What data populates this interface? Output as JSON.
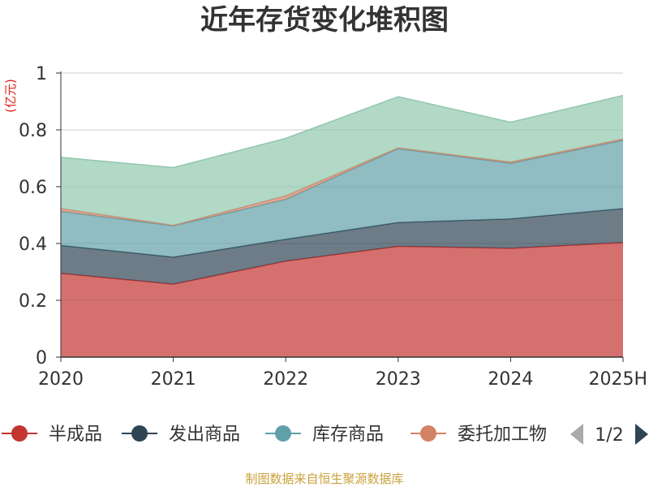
{
  "chart_data": {
    "type": "area",
    "stacked": true,
    "title": "近年存货变化堆积图",
    "unit": "(亿元)",
    "categories": [
      "2020",
      "2021",
      "2022",
      "2023",
      "2024",
      "2025H"
    ],
    "y_ticks": [
      "0",
      "0.2",
      "0.4",
      "0.6",
      "0.8",
      "1"
    ],
    "ylim": [
      0,
      1
    ],
    "grid": true,
    "series": [
      {
        "name": "半成品",
        "color": "#c23531",
        "values": [
          0.295,
          0.257,
          0.338,
          0.39,
          0.383,
          0.403
        ]
      },
      {
        "name": "发出商品",
        "color": "#2f4554",
        "values": [
          0.098,
          0.095,
          0.077,
          0.084,
          0.104,
          0.12
        ]
      },
      {
        "name": "库存商品",
        "color": "#61a0a8",
        "values": [
          0.12,
          0.11,
          0.14,
          0.26,
          0.195,
          0.24
        ]
      },
      {
        "name": "委托加工物资",
        "color": "#d48265",
        "values": [
          0.01,
          0.002,
          0.013,
          0.003,
          0.005,
          0.005
        ]
      },
      {
        "name": "",
        "color": "#91c7ae",
        "values": [
          0.18,
          0.203,
          0.202,
          0.18,
          0.14,
          0.153
        ]
      }
    ],
    "legend": {
      "position": "bottom",
      "visible_labels": [
        "半成品",
        "发出商品",
        "库存商品",
        "委托加工物"
      ],
      "page": "1/2"
    },
    "source": "制图数据来自恒生聚源数据库"
  }
}
